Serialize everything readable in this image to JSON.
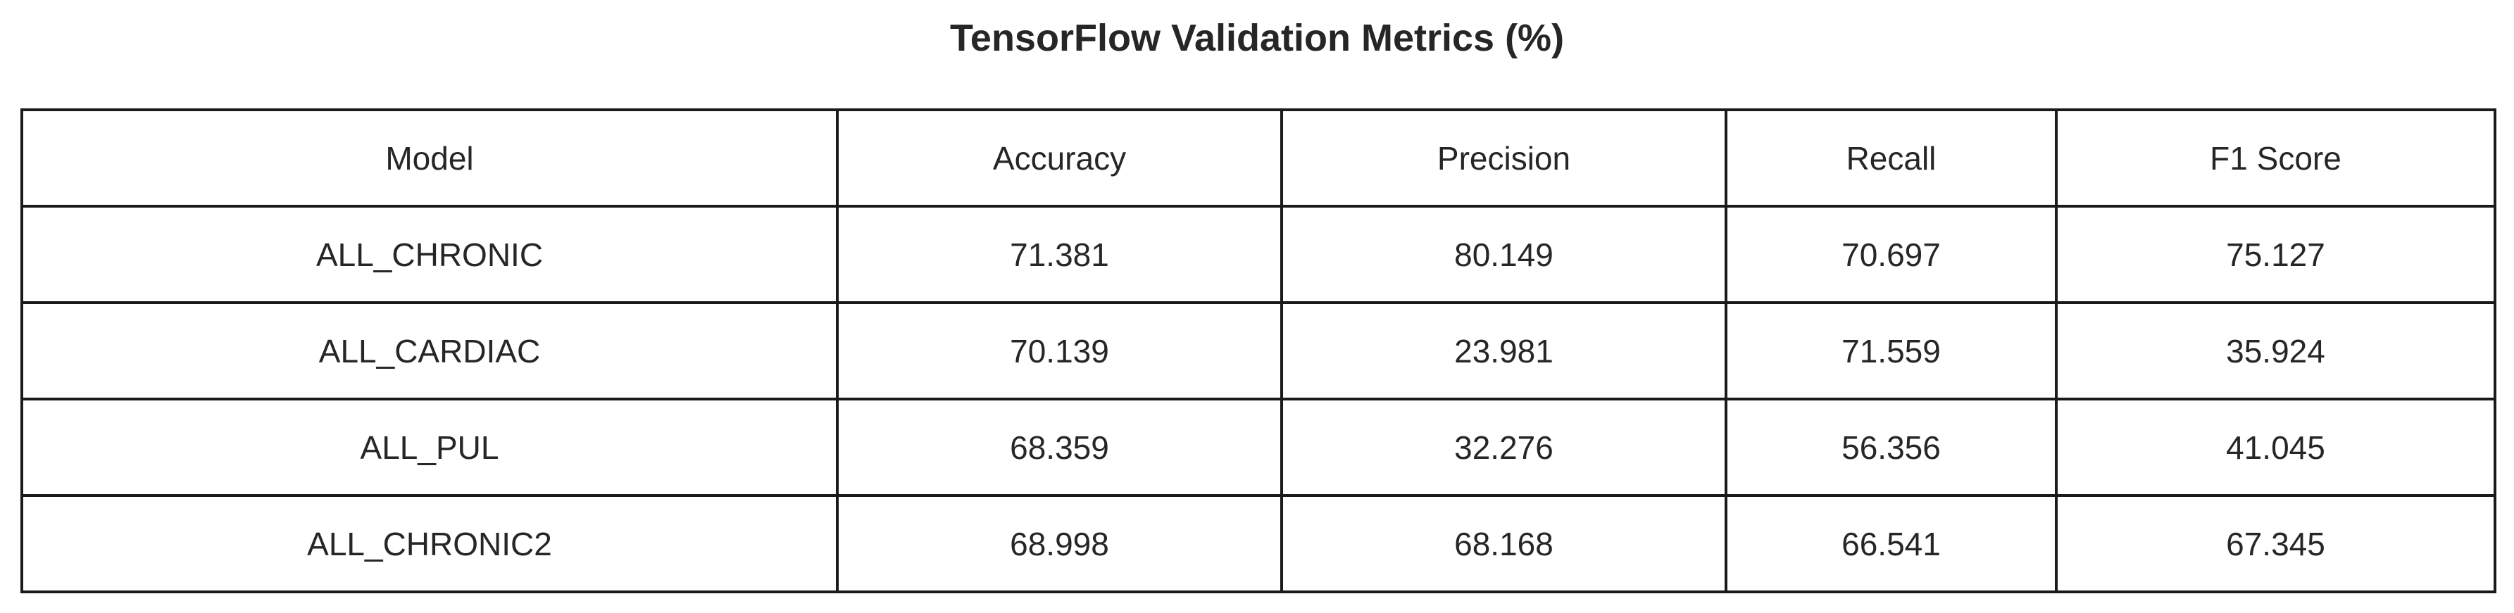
{
  "chart_data": {
    "type": "table",
    "title": "TensorFlow Validation Metrics (%)",
    "columns": [
      "Model",
      "Accuracy",
      "Precision",
      "Recall",
      "F1 Score"
    ],
    "rows": [
      [
        "ALL_CHRONIC",
        "71.381",
        "80.149",
        "70.697",
        "75.127"
      ],
      [
        "ALL_CARDIAC",
        "70.139",
        "23.981",
        "71.559",
        "35.924"
      ],
      [
        "ALL_PUL",
        "68.359",
        "32.276",
        "56.356",
        "41.045"
      ],
      [
        "ALL_CHRONIC2",
        "68.998",
        "68.168",
        "66.541",
        "67.345"
      ]
    ]
  }
}
